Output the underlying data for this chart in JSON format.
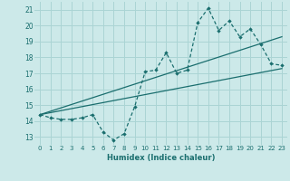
{
  "xlabel": "Humidex (Indice chaleur)",
  "background_color": "#cce9e9",
  "grid_color": "#aad4d4",
  "line_color": "#1a6e6e",
  "xlim": [
    -0.5,
    23.5
  ],
  "ylim": [
    12.5,
    21.5
  ],
  "yticks": [
    13,
    14,
    15,
    16,
    17,
    18,
    19,
    20,
    21
  ],
  "xticks": [
    0,
    1,
    2,
    3,
    4,
    5,
    6,
    7,
    8,
    9,
    10,
    11,
    12,
    13,
    14,
    15,
    16,
    17,
    18,
    19,
    20,
    21,
    22,
    23
  ],
  "scatter_x": [
    0,
    1,
    2,
    3,
    4,
    5,
    6,
    7,
    8,
    9,
    10,
    11,
    12,
    13,
    14,
    15,
    16,
    17,
    18,
    19,
    20,
    21,
    22,
    23
  ],
  "scatter_y": [
    14.4,
    14.2,
    14.1,
    14.1,
    14.2,
    14.4,
    13.3,
    12.8,
    13.2,
    14.9,
    17.1,
    17.2,
    18.3,
    17.0,
    17.2,
    20.2,
    21.1,
    19.7,
    20.3,
    19.3,
    19.8,
    18.8,
    17.6,
    17.5
  ],
  "line1_x": [
    0,
    23
  ],
  "line1_y": [
    14.4,
    17.3
  ],
  "line2_x": [
    0,
    23
  ],
  "line2_y": [
    14.4,
    19.3
  ]
}
